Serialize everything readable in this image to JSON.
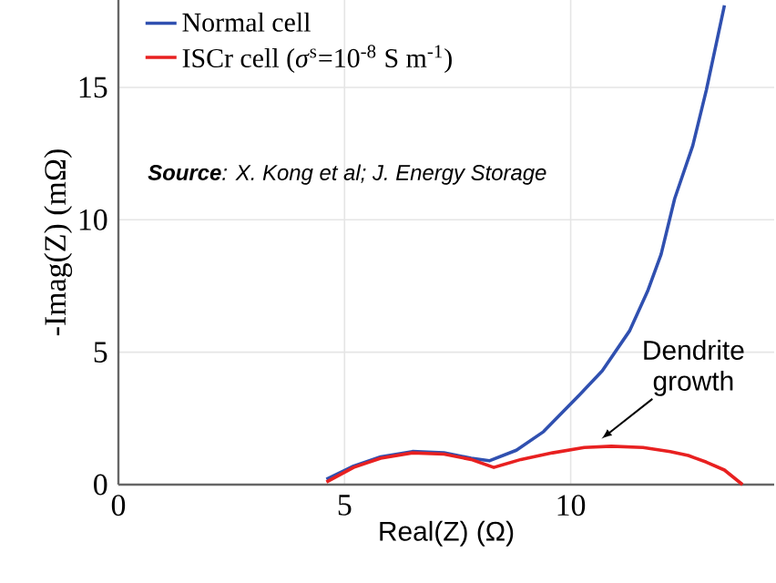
{
  "chart_data": {
    "type": "line",
    "xlabel": "Real(Z)  (Ω)",
    "ylabel": "-Imag(Z) (mΩ)",
    "xlim": [
      0,
      14.5
    ],
    "ylim": [
      0,
      18.3
    ],
    "xticks": [
      0,
      5,
      10
    ],
    "yticks": [
      0,
      5,
      10,
      15
    ],
    "grid": true,
    "legend": "top left",
    "marker": "none",
    "series": [
      {
        "name": "Normal cell",
        "color": "#3050b0",
        "x": [
          4.6,
          5.2,
          5.8,
          6.5,
          7.2,
          7.8,
          8.2,
          8.8,
          9.4,
          10.2,
          10.7,
          11.3,
          11.7,
          12.0,
          12.3,
          12.7,
          13.0,
          13.4
        ],
        "values": [
          0.2,
          0.7,
          1.05,
          1.25,
          1.2,
          1.0,
          0.9,
          1.3,
          2.0,
          3.4,
          4.3,
          5.8,
          7.3,
          8.7,
          10.8,
          12.8,
          14.9,
          18.1
        ]
      },
      {
        "name": "ISCr cell (*σ*$^{s}$=10$^{-8}$ S m$^{-1}$)",
        "color": "#e82020",
        "x": [
          4.6,
          5.2,
          5.8,
          6.5,
          7.2,
          7.8,
          8.3,
          8.9,
          9.6,
          10.3,
          10.9,
          11.6,
          12.2,
          12.6,
          13.0,
          13.4,
          13.8
        ],
        "values": [
          0.1,
          0.65,
          1.0,
          1.2,
          1.15,
          0.95,
          0.65,
          0.95,
          1.2,
          1.4,
          1.45,
          1.4,
          1.25,
          1.1,
          0.85,
          0.55,
          0.0
        ]
      }
    ],
    "annotations": [
      "**Source**: X. Kong et al; J. Energy Storage",
      {
        "text": "Dendrite growth",
        "x": 10.6,
        "y": 1.45
      }
    ]
  }
}
